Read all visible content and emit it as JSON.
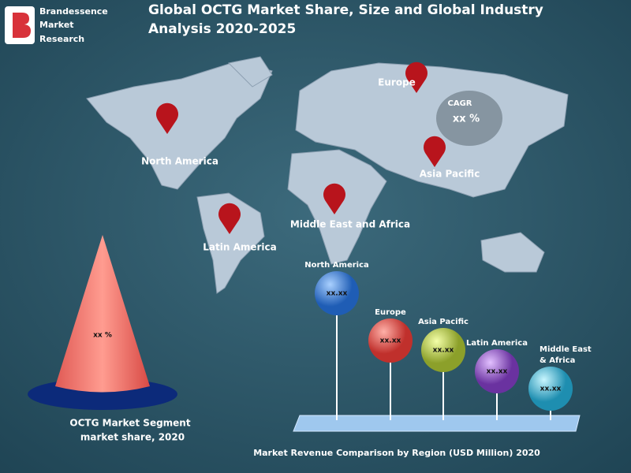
{
  "logo": {
    "lines": [
      "Brandessence",
      "Market",
      "Research"
    ]
  },
  "header": {
    "title_lines": [
      "Global OCTG Market Share, Size and Global Industry",
      "Analysis 2020-2025"
    ]
  },
  "map": {
    "labels": [
      "North America",
      "Europe",
      "Asia Pacific",
      "Middle East and Africa",
      "Latin America"
    ],
    "cagr": {
      "label": "CAGR",
      "value": "xx %"
    }
  },
  "cone": {
    "value": "xx %",
    "caption_lines": [
      "OCTG   Market Segment",
      "market share, 2020"
    ]
  },
  "bubbles": [
    {
      "label_lines": [
        "North America"
      ],
      "value": "xx.xx"
    },
    {
      "label_lines": [
        "Europe"
      ],
      "value": "xx.xx"
    },
    {
      "label_lines": [
        "Asia Pacific"
      ],
      "value": "xx.xx"
    },
    {
      "label_lines": [
        "Latin America"
      ],
      "value": "xx.xx"
    },
    {
      "label_lines": [
        "Middle East",
        "& Africa"
      ],
      "value": "xx.xx"
    }
  ],
  "footer": {
    "caption": "Market Revenue Comparison by Region (USD Million) 2020"
  }
}
